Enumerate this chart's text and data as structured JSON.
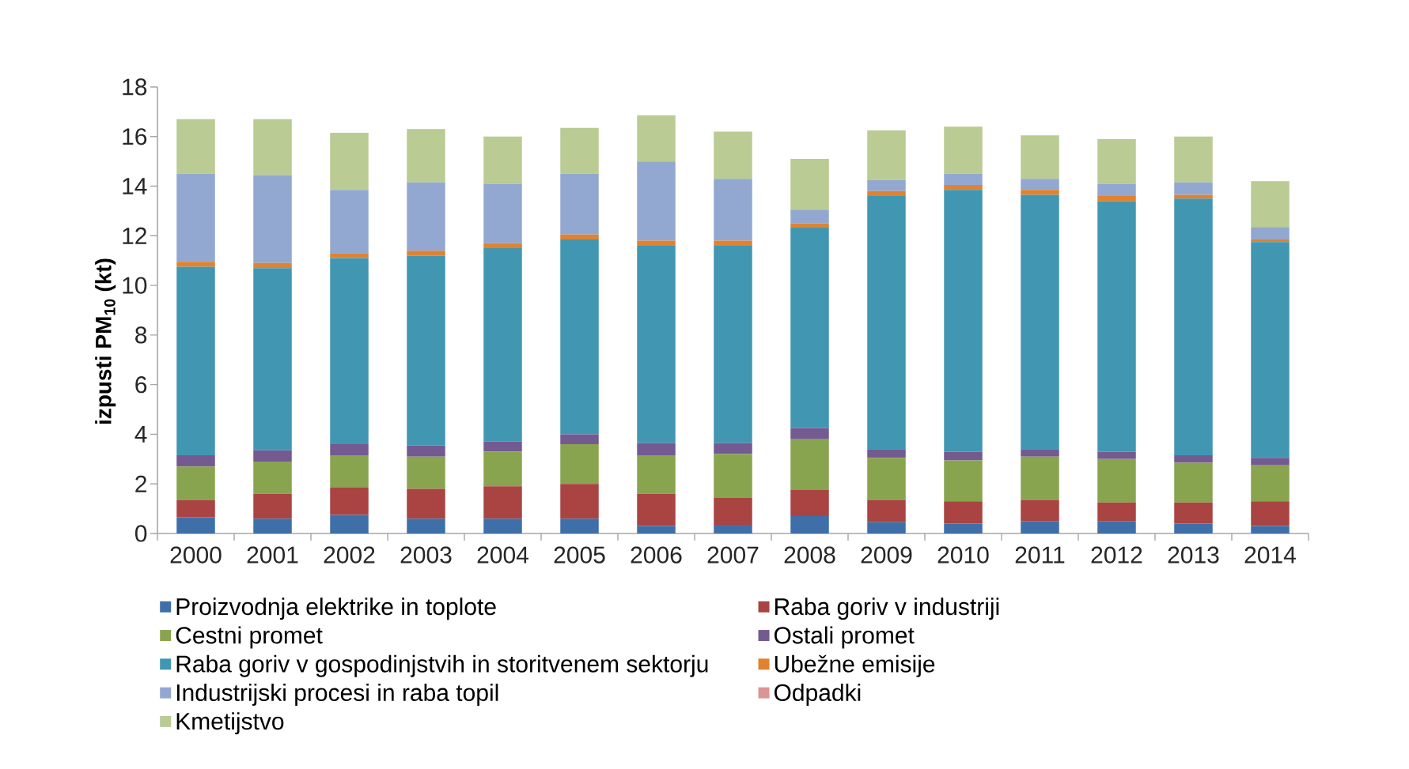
{
  "chart_data": {
    "type": "bar",
    "stacked": true,
    "ylabel": "izpusti PM$_{10}$ (kt)",
    "categories": [
      "2000",
      "2001",
      "2002",
      "2003",
      "2004",
      "2005",
      "2006",
      "2007",
      "2008",
      "2009",
      "2010",
      "2011",
      "2012",
      "2013",
      "2014"
    ],
    "ylim": [
      0,
      18
    ],
    "yticks": [
      0,
      2,
      4,
      6,
      8,
      10,
      12,
      14,
      16,
      18
    ],
    "legend": "bottom",
    "series": [
      {
        "name": "Proizvodnja elektrike in toplote",
        "color": "#3f6fa8",
        "values": [
          0.65,
          0.6,
          0.75,
          0.6,
          0.6,
          0.6,
          0.3,
          0.35,
          0.7,
          0.45,
          0.4,
          0.5,
          0.5,
          0.4,
          0.3
        ]
      },
      {
        "name": "Raba goriv v industriji",
        "color": "#a94442",
        "values": [
          0.7,
          1.0,
          1.1,
          1.2,
          1.3,
          1.4,
          1.3,
          1.1,
          1.05,
          0.9,
          0.9,
          0.85,
          0.75,
          0.85,
          1.0
        ]
      },
      {
        "name": "Cestni promet",
        "color": "#88a44e",
        "values": [
          1.35,
          1.3,
          1.3,
          1.3,
          1.4,
          1.6,
          1.55,
          1.75,
          2.05,
          1.7,
          1.65,
          1.75,
          1.75,
          1.6,
          1.45
        ]
      },
      {
        "name": "Ostali promet",
        "color": "#735a91",
        "values": [
          0.45,
          0.45,
          0.45,
          0.45,
          0.4,
          0.4,
          0.5,
          0.45,
          0.45,
          0.35,
          0.35,
          0.3,
          0.3,
          0.3,
          0.3
        ]
      },
      {
        "name": "Raba goriv v gospodinjstvih in storitvenem sektorju",
        "color": "#4197b1",
        "values": [
          7.6,
          7.35,
          7.5,
          7.65,
          7.8,
          7.85,
          7.95,
          7.95,
          8.1,
          10.2,
          10.55,
          10.25,
          10.1,
          10.35,
          8.7
        ]
      },
      {
        "name": "Ubežne emisije",
        "color": "#e0822f",
        "values": [
          0.2,
          0.2,
          0.2,
          0.2,
          0.2,
          0.2,
          0.2,
          0.2,
          0.15,
          0.2,
          0.2,
          0.2,
          0.2,
          0.15,
          0.1
        ]
      },
      {
        "name": "Industrijski procesi in raba topil",
        "color": "#93a8d0",
        "values": [
          3.55,
          3.55,
          2.55,
          2.75,
          2.4,
          2.45,
          3.2,
          2.5,
          0.55,
          0.45,
          0.45,
          0.45,
          0.5,
          0.5,
          0.5
        ]
      },
      {
        "name": "Odpadki",
        "color": "#d99694",
        "values": [
          null,
          null,
          null,
          null,
          null,
          null,
          null,
          null,
          null,
          null,
          null,
          null,
          null,
          null,
          null
        ]
      },
      {
        "name": "Kmetijstvo",
        "color": "#bacb93",
        "values": [
          2.2,
          2.25,
          2.3,
          2.15,
          1.9,
          1.85,
          1.85,
          1.9,
          2.05,
          2.0,
          1.9,
          1.75,
          1.8,
          1.85,
          1.85
        ]
      }
    ]
  }
}
